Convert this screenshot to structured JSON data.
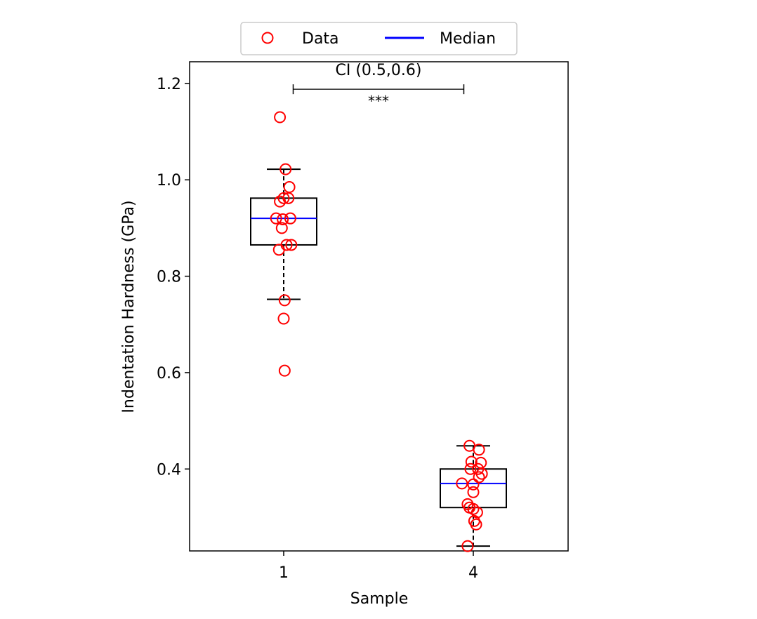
{
  "chart_data": {
    "type": "box",
    "xlabel": "Sample",
    "ylabel": "Indentation Hardness (GPa)",
    "categories": [
      "1",
      "4"
    ],
    "ylim": [
      0.23,
      1.245
    ],
    "yticks": [
      "0.4",
      "0.6",
      "0.8",
      "1.0",
      "1.2"
    ],
    "legend": {
      "placement": "top-center",
      "entries": [
        {
          "label": "Data",
          "marker": "circle",
          "color": "#ff0000"
        },
        {
          "label": "Median",
          "marker": "line",
          "color": "#0000ff"
        }
      ]
    },
    "annotation": {
      "text_top": "CI (0.5,0.6)",
      "text_bottom": "***",
      "from_category": 0.05,
      "to_category": 0.95,
      "y": 1.188
    },
    "boxes": [
      {
        "category": "1",
        "q1": 0.865,
        "median": 0.92,
        "q3": 0.962,
        "whisker_low": 0.752,
        "whisker_high": 1.022
      },
      {
        "category": "4",
        "q1": 0.32,
        "median": 0.37,
        "q3": 0.4,
        "whisker_low": 0.24,
        "whisker_high": 0.448
      }
    ],
    "points": [
      {
        "category": "1",
        "offset": -0.02,
        "y": 1.13
      },
      {
        "category": "1",
        "offset": 0.01,
        "y": 1.022
      },
      {
        "category": "1",
        "offset": 0.03,
        "y": 0.985
      },
      {
        "category": "1",
        "offset": 0.0,
        "y": 0.962
      },
      {
        "category": "1",
        "offset": 0.025,
        "y": 0.962
      },
      {
        "category": "1",
        "offset": -0.02,
        "y": 0.955
      },
      {
        "category": "1",
        "offset": -0.04,
        "y": 0.92
      },
      {
        "category": "1",
        "offset": -0.005,
        "y": 0.918
      },
      {
        "category": "1",
        "offset": 0.035,
        "y": 0.92
      },
      {
        "category": "1",
        "offset": -0.01,
        "y": 0.9
      },
      {
        "category": "1",
        "offset": 0.015,
        "y": 0.865
      },
      {
        "category": "1",
        "offset": 0.04,
        "y": 0.865
      },
      {
        "category": "1",
        "offset": -0.025,
        "y": 0.855
      },
      {
        "category": "1",
        "offset": 0.005,
        "y": 0.75
      },
      {
        "category": "1",
        "offset": 0.0,
        "y": 0.712
      },
      {
        "category": "1",
        "offset": 0.005,
        "y": 0.604
      },
      {
        "category": "4",
        "offset": -0.02,
        "y": 0.448
      },
      {
        "category": "4",
        "offset": 0.03,
        "y": 0.44
      },
      {
        "category": "4",
        "offset": -0.01,
        "y": 0.415
      },
      {
        "category": "4",
        "offset": 0.04,
        "y": 0.413
      },
      {
        "category": "4",
        "offset": -0.015,
        "y": 0.4
      },
      {
        "category": "4",
        "offset": 0.025,
        "y": 0.4
      },
      {
        "category": "4",
        "offset": 0.045,
        "y": 0.39
      },
      {
        "category": "4",
        "offset": 0.03,
        "y": 0.383
      },
      {
        "category": "4",
        "offset": -0.06,
        "y": 0.37
      },
      {
        "category": "4",
        "offset": 0.0,
        "y": 0.368
      },
      {
        "category": "4",
        "offset": 0.0,
        "y": 0.352
      },
      {
        "category": "4",
        "offset": -0.03,
        "y": 0.327
      },
      {
        "category": "4",
        "offset": -0.02,
        "y": 0.32
      },
      {
        "category": "4",
        "offset": 0.0,
        "y": 0.317
      },
      {
        "category": "4",
        "offset": 0.02,
        "y": 0.31
      },
      {
        "category": "4",
        "offset": 0.005,
        "y": 0.292
      },
      {
        "category": "4",
        "offset": 0.015,
        "y": 0.285
      },
      {
        "category": "4",
        "offset": -0.03,
        "y": 0.24
      }
    ],
    "colors": {
      "box": "#000000",
      "median": "#0000ff",
      "points": "#ff0000"
    }
  }
}
